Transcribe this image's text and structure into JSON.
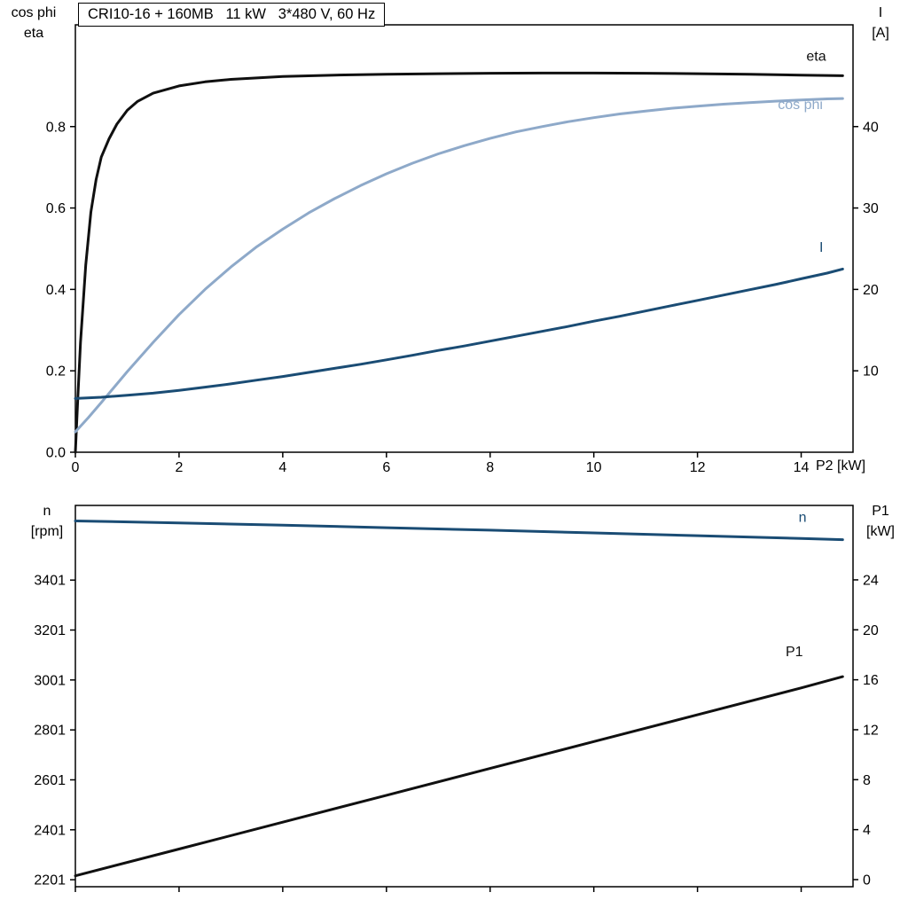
{
  "chart_data": [
    {
      "id": "motor-curves",
      "type": "line",
      "title": "CRI10-16 + 160MB   11 kW   3*480 V, 60 Hz",
      "grid": false,
      "legend": "inline-curve-labels",
      "x_axis": {
        "label": "P2 [kW]",
        "min": 0,
        "max": 15,
        "show_tick_labels": true,
        "ticks": [
          {
            "v": 0,
            "t": "0"
          },
          {
            "v": 2,
            "t": "2"
          },
          {
            "v": 4,
            "t": "4"
          },
          {
            "v": 6,
            "t": "6"
          },
          {
            "v": 8,
            "t": "8"
          },
          {
            "v": 10,
            "t": "10"
          },
          {
            "v": 12,
            "t": "12"
          },
          {
            "v": 14,
            "t": "14"
          }
        ]
      },
      "y_left": {
        "label_lines": [
          "cos phi",
          "eta"
        ],
        "min": 0,
        "max": 1.05,
        "ticks": [
          {
            "v": 0,
            "t": "0.0"
          },
          {
            "v": 0.2,
            "t": "0.2"
          },
          {
            "v": 0.4,
            "t": "0.4"
          },
          {
            "v": 0.6,
            "t": "0.6"
          },
          {
            "v": 0.8,
            "t": "0.8"
          }
        ]
      },
      "y_right": {
        "label_lines": [
          "I",
          "[A]"
        ],
        "min": 0,
        "max": 52.5,
        "ticks": [
          {
            "v": 10,
            "t": "10"
          },
          {
            "v": 20,
            "t": "20"
          },
          {
            "v": 30,
            "t": "30"
          },
          {
            "v": 40,
            "t": "40"
          }
        ]
      },
      "series": [
        {
          "name": "eta",
          "axis": "left",
          "color": "#101010",
          "width": 3,
          "label": {
            "text": "eta",
            "x": 14.1,
            "y": 0.962
          },
          "points": [
            [
              0,
              0
            ],
            [
              0.05,
              0.14
            ],
            [
              0.1,
              0.27
            ],
            [
              0.2,
              0.46
            ],
            [
              0.3,
              0.59
            ],
            [
              0.4,
              0.67
            ],
            [
              0.5,
              0.725
            ],
            [
              0.65,
              0.77
            ],
            [
              0.8,
              0.806
            ],
            [
              1,
              0.84
            ],
            [
              1.2,
              0.862
            ],
            [
              1.5,
              0.882
            ],
            [
              2,
              0.9
            ],
            [
              2.5,
              0.91
            ],
            [
              3,
              0.916
            ],
            [
              4,
              0.923
            ],
            [
              5,
              0.9265
            ],
            [
              6,
              0.9285
            ],
            [
              7,
              0.93
            ],
            [
              8,
              0.931
            ],
            [
              9,
              0.9315
            ],
            [
              10,
              0.9315
            ],
            [
              11,
              0.931
            ],
            [
              12,
              0.93
            ],
            [
              13,
              0.9285
            ],
            [
              14,
              0.9265
            ],
            [
              14.8,
              0.925
            ]
          ]
        },
        {
          "name": "cos phi",
          "axis": "left",
          "color": "#8ea9c9",
          "width": 3,
          "label": {
            "text": "cos phi",
            "x": 13.55,
            "y": 0.843
          },
          "points": [
            [
              0,
              0.05
            ],
            [
              0.25,
              0.085
            ],
            [
              0.5,
              0.122
            ],
            [
              0.75,
              0.16
            ],
            [
              1,
              0.198
            ],
            [
              1.5,
              0.27
            ],
            [
              2,
              0.338
            ],
            [
              2.5,
              0.4
            ],
            [
              3,
              0.455
            ],
            [
              3.5,
              0.505
            ],
            [
              4,
              0.548
            ],
            [
              4.5,
              0.588
            ],
            [
              5,
              0.623
            ],
            [
              5.5,
              0.655
            ],
            [
              6,
              0.684
            ],
            [
              6.5,
              0.71
            ],
            [
              7,
              0.733
            ],
            [
              7.5,
              0.753
            ],
            [
              8,
              0.771
            ],
            [
              8.5,
              0.787
            ],
            [
              9,
              0.8
            ],
            [
              9.5,
              0.812
            ],
            [
              10,
              0.822
            ],
            [
              10.5,
              0.831
            ],
            [
              11,
              0.838
            ],
            [
              11.5,
              0.845
            ],
            [
              12,
              0.85
            ],
            [
              12.5,
              0.855
            ],
            [
              13,
              0.859
            ],
            [
              13.5,
              0.8625
            ],
            [
              14,
              0.8655
            ],
            [
              14.5,
              0.868
            ],
            [
              14.8,
              0.869
            ]
          ]
        },
        {
          "name": "I",
          "axis": "right",
          "color": "#1a4c74",
          "width": 3,
          "label": {
            "text": "I",
            "x": 14.35,
            "y": 24.6
          },
          "points": [
            [
              0,
              6.6
            ],
            [
              0.5,
              6.75
            ],
            [
              1,
              7.0
            ],
            [
              1.5,
              7.25
            ],
            [
              2,
              7.6
            ],
            [
              2.5,
              8.0
            ],
            [
              3,
              8.4
            ],
            [
              3.5,
              8.85
            ],
            [
              4,
              9.3
            ],
            [
              4.5,
              9.8
            ],
            [
              5,
              10.3
            ],
            [
              5.5,
              10.8
            ],
            [
              6,
              11.35
            ],
            [
              6.5,
              11.9
            ],
            [
              7,
              12.5
            ],
            [
              7.5,
              13.05
            ],
            [
              8,
              13.65
            ],
            [
              8.5,
              14.25
            ],
            [
              9,
              14.85
            ],
            [
              9.5,
              15.45
            ],
            [
              10,
              16.1
            ],
            [
              10.5,
              16.7
            ],
            [
              11,
              17.35
            ],
            [
              11.5,
              18.0
            ],
            [
              12,
              18.65
            ],
            [
              12.5,
              19.3
            ],
            [
              13,
              19.95
            ],
            [
              13.5,
              20.6
            ],
            [
              14,
              21.3
            ],
            [
              14.5,
              22.0
            ],
            [
              14.8,
              22.5
            ]
          ]
        }
      ]
    },
    {
      "id": "speed-power-curves",
      "type": "line",
      "title": "",
      "grid": false,
      "legend": "inline-curve-labels",
      "x_axis": {
        "label": "",
        "min": 0,
        "max": 15,
        "show_tick_labels": false,
        "ticks": [
          {
            "v": 0,
            "t": "0"
          },
          {
            "v": 2,
            "t": "2"
          },
          {
            "v": 4,
            "t": "4"
          },
          {
            "v": 6,
            "t": "6"
          },
          {
            "v": 8,
            "t": "8"
          },
          {
            "v": 10,
            "t": "10"
          },
          {
            "v": 12,
            "t": "12"
          },
          {
            "v": 14,
            "t": "14"
          }
        ]
      },
      "y_left": {
        "label_lines": [
          "n",
          "[rpm]"
        ],
        "min": 2173,
        "max": 3700,
        "ticks": [
          {
            "v": 2201,
            "t": "2201"
          },
          {
            "v": 2401,
            "t": "2401"
          },
          {
            "v": 2601,
            "t": "2601"
          },
          {
            "v": 2801,
            "t": "2801"
          },
          {
            "v": 3001,
            "t": "3001"
          },
          {
            "v": 3201,
            "t": "3201"
          },
          {
            "v": 3401,
            "t": "3401"
          }
        ]
      },
      "y_right": {
        "label_lines": [
          "P1",
          "[kW]"
        ],
        "min": -0.57,
        "max": 29.96,
        "ticks": [
          {
            "v": 0,
            "t": "0"
          },
          {
            "v": 4,
            "t": "4"
          },
          {
            "v": 8,
            "t": "8"
          },
          {
            "v": 12,
            "t": "12"
          },
          {
            "v": 16,
            "t": "16"
          },
          {
            "v": 20,
            "t": "20"
          },
          {
            "v": 24,
            "t": "24"
          }
        ]
      },
      "series": [
        {
          "name": "n",
          "axis": "left",
          "color": "#1a4c74",
          "width": 3,
          "label": {
            "text": "n",
            "x": 13.95,
            "y": 3634
          },
          "points": [
            [
              0,
              3638
            ],
            [
              2,
              3630
            ],
            [
              4,
              3621
            ],
            [
              6,
              3611
            ],
            [
              8,
              3601
            ],
            [
              10,
              3590
            ],
            [
              12,
              3579
            ],
            [
              14,
              3568
            ],
            [
              14.8,
              3563
            ]
          ]
        },
        {
          "name": "P1",
          "axis": "right",
          "color": "#101010",
          "width": 3,
          "label": {
            "text": "P1",
            "x": 13.7,
            "y": 17.9
          },
          "points": [
            [
              0,
              0.3
            ],
            [
              2,
              2.45
            ],
            [
              4,
              4.6
            ],
            [
              6,
              6.75
            ],
            [
              8,
              8.9
            ],
            [
              10,
              11.05
            ],
            [
              12,
              13.2
            ],
            [
              14,
              15.35
            ],
            [
              14.8,
              16.25
            ]
          ]
        }
      ]
    }
  ]
}
